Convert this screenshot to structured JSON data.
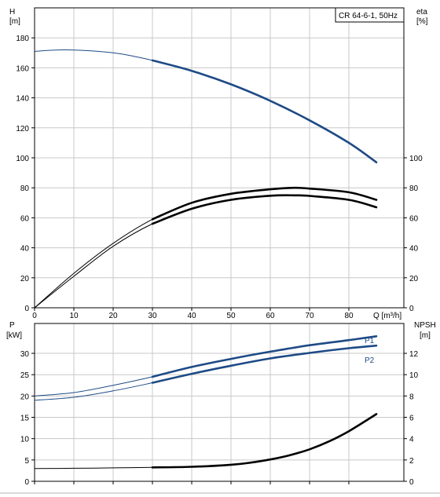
{
  "chart_data": [
    {
      "type": "line",
      "title": "CR 64-6-1, 50Hz",
      "xlabel": "Q [m³/h]",
      "xlim": [
        0,
        94
      ],
      "x_ticks": [
        "0",
        "10",
        "20",
        "30",
        "40",
        "50",
        "60",
        "70",
        "80"
      ],
      "left_axis": {
        "label_line1": "H",
        "label_line2": "[m]",
        "ylim": [
          0,
          200
        ],
        "ticks": [
          "0",
          "20",
          "40",
          "60",
          "80",
          "100",
          "120",
          "140",
          "160",
          "180"
        ]
      },
      "right_axis": {
        "label_line1": "eta",
        "label_line2": "[%]",
        "ylim": [
          0,
          200
        ],
        "ticks": [
          "0",
          "20",
          "40",
          "60",
          "80",
          "100"
        ]
      },
      "grid": true,
      "series": [
        {
          "color": "#1e4a86",
          "axis": "left",
          "x": [
            0,
            8,
            20,
            30,
            40,
            50,
            60,
            70,
            80,
            87
          ],
          "values": [
            171,
            172,
            170,
            165,
            158,
            149,
            138,
            125,
            110,
            97
          ],
          "emphasized_from_x": 30
        },
        {
          "color": "#000000",
          "axis": "right",
          "x": [
            0,
            10,
            20,
            30,
            40,
            50,
            60,
            66,
            70,
            80,
            87
          ],
          "values": [
            0,
            23,
            43,
            59,
            70,
            76,
            79,
            80,
            79.5,
            77,
            72
          ],
          "emphasized_from_x": 30
        },
        {
          "color": "#000000",
          "axis": "right",
          "x": [
            0,
            10,
            20,
            30,
            40,
            50,
            60,
            66,
            70,
            80,
            87
          ],
          "values": [
            0,
            21,
            41,
            56,
            66,
            72,
            74.7,
            75,
            74.6,
            72,
            67
          ],
          "emphasized_from_x": 30
        }
      ]
    },
    {
      "type": "line",
      "xlim": [
        0,
        94
      ],
      "left_axis": {
        "label_line1": "P",
        "label_line2": "[kW]",
        "ylim": [
          0,
          37
        ],
        "ticks": [
          "0",
          "5",
          "10",
          "15",
          "20",
          "25",
          "30"
        ]
      },
      "right_axis": {
        "label_line1": "NPSH",
        "label_line2": "[m]",
        "ylim": [
          0,
          14.8
        ],
        "ticks": [
          "0",
          "2",
          "4",
          "6",
          "8",
          "10",
          "12"
        ]
      },
      "grid": true,
      "series": [
        {
          "name": "P1",
          "color": "#1e4a86",
          "axis": "left",
          "x": [
            0,
            10,
            20,
            30,
            40,
            50,
            60,
            70,
            80,
            87
          ],
          "values": [
            20,
            20.8,
            22.5,
            24.5,
            26.8,
            28.7,
            30.4,
            31.9,
            33.1,
            34
          ],
          "emphasized_from_x": 30
        },
        {
          "name": "P2",
          "color": "#1e4a86",
          "axis": "left",
          "x": [
            0,
            10,
            20,
            30,
            40,
            50,
            60,
            70,
            80,
            87
          ],
          "values": [
            19,
            19.7,
            21.2,
            23.1,
            25.2,
            27.1,
            28.8,
            30.1,
            31.2,
            31.8
          ],
          "emphasized_from_x": 30
        },
        {
          "color": "#000000",
          "axis": "right",
          "x": [
            0,
            10,
            20,
            30,
            40,
            50,
            55,
            60,
            65,
            70,
            75,
            80,
            87
          ],
          "values": [
            1.2,
            1.22,
            1.26,
            1.3,
            1.36,
            1.55,
            1.75,
            2.05,
            2.45,
            3.0,
            3.75,
            4.7,
            6.3
          ],
          "emphasized_from_x": 30
        }
      ]
    }
  ]
}
